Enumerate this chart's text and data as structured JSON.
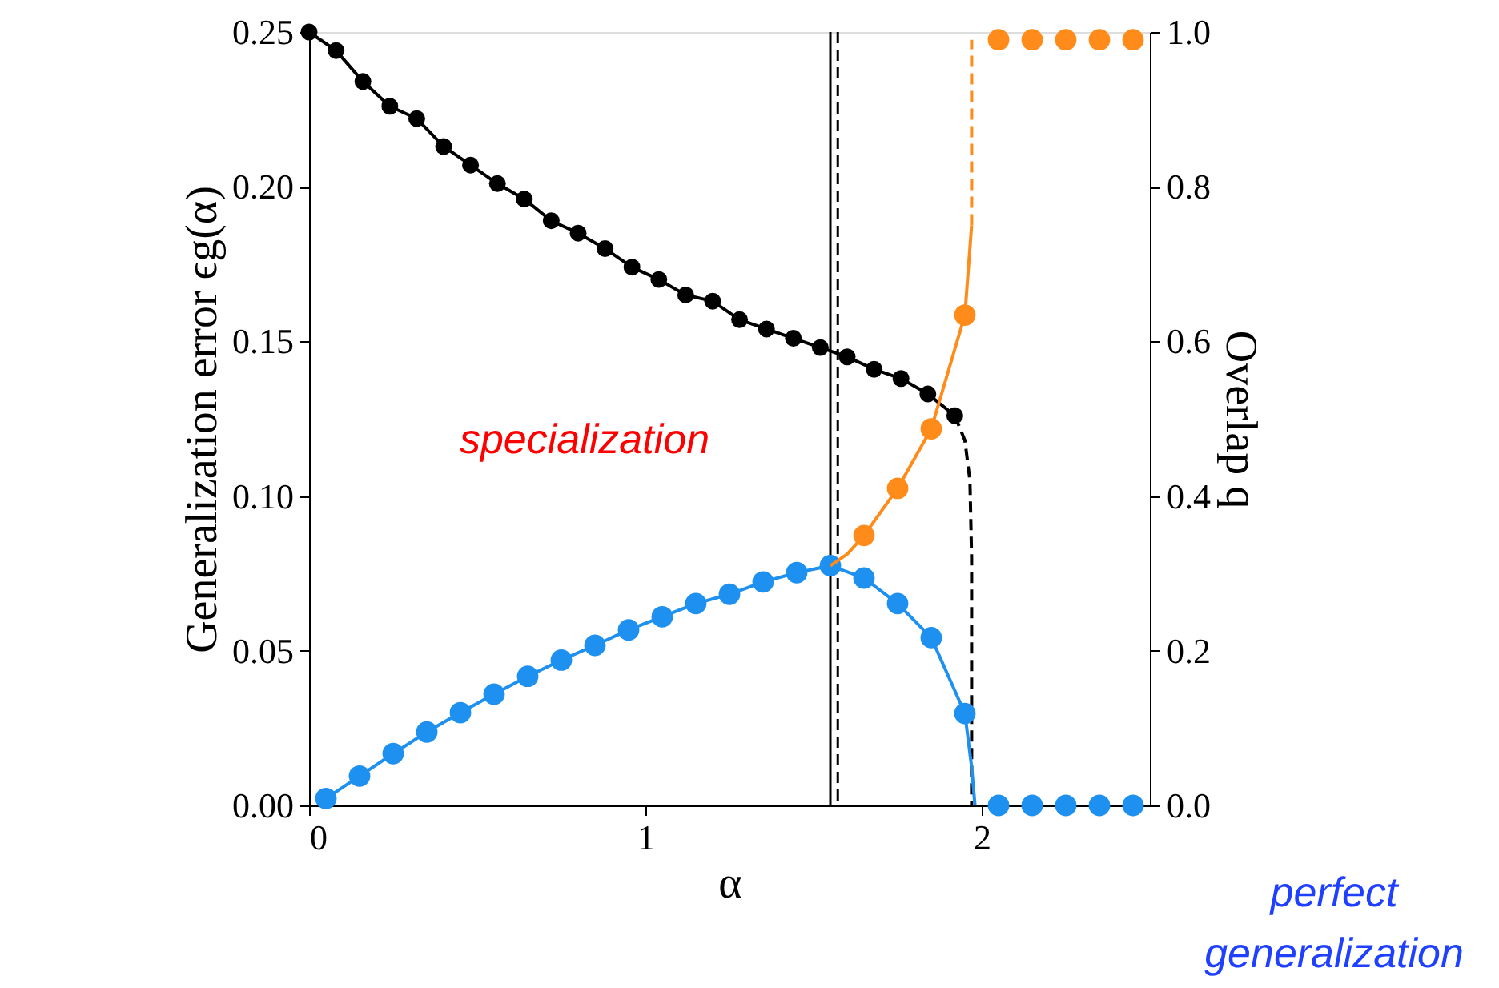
{
  "chart_data": {
    "type": "line",
    "xlabel": "α",
    "ylabel": "Generalization error ϵg(α)",
    "y2label": "Overlap q",
    "xlim": [
      0,
      2.5
    ],
    "xticks": [
      0,
      1,
      2
    ],
    "ylim": [
      0,
      0.25
    ],
    "yticks": [
      {
        "value": 0,
        "label": "0.00"
      },
      {
        "value": 0.05,
        "label": "0.05"
      },
      {
        "value": 0.1,
        "label": "0.10"
      },
      {
        "value": 0.15,
        "label": "0.15"
      },
      {
        "value": 0.2,
        "label": "0.20"
      },
      {
        "value": 0.25,
        "label": "0.25"
      }
    ],
    "y2lim": [
      0,
      1
    ],
    "y2ticks": [
      {
        "value": 0,
        "label": "0.0"
      },
      {
        "value": 0.2,
        "label": "0.2"
      },
      {
        "value": 0.4,
        "label": "0.4"
      },
      {
        "value": 0.6,
        "label": "0.6"
      },
      {
        "value": 0.8,
        "label": "0.8"
      },
      {
        "value": 1,
        "label": "1.0"
      }
    ],
    "grid": false,
    "annotations": [
      "specialization",
      "perfect generalization"
    ],
    "ref_lines": [
      {
        "axis": "x",
        "value": 1.55,
        "label": null,
        "color": "#000000",
        "line_style": "solid"
      },
      {
        "axis": "x",
        "value": 1.572,
        "label": null,
        "color": "#000000",
        "line_style": "dashed"
      }
    ],
    "series": [
      {
        "color": "#000000",
        "marker": "circle",
        "line_style": "solid",
        "x": [
          0,
          0.08,
          0.16,
          0.24,
          0.32,
          0.4,
          0.48,
          0.56,
          0.64,
          0.72,
          0.8,
          0.88,
          0.96,
          1.04,
          1.12,
          1.2,
          1.28,
          1.36,
          1.44,
          1.52,
          1.6,
          1.68,
          1.76,
          1.84,
          1.92
        ],
        "values": [
          0.25,
          0.244,
          0.234,
          0.226,
          0.222,
          0.213,
          0.207,
          0.201,
          0.196,
          0.189,
          0.185,
          0.18,
          0.174,
          0.17,
          0.165,
          0.163,
          0.157,
          0.154,
          0.151,
          0.148,
          0.145,
          0.141,
          0.138,
          0.133,
          0.126
        ]
      },
      {
        "color": "#000000",
        "marker": "none",
        "line_style": "dashed",
        "x": [
          1.92,
          1.95,
          1.965,
          1.97,
          1.97
        ],
        "values": [
          0.126,
          0.118,
          0.105,
          0.08,
          0
        ]
      },
      {
        "color": "#1e90f0",
        "marker": "circle",
        "line_style": "solid",
        "axis": "y2",
        "x": [
          0.05,
          0.15,
          0.25,
          0.35,
          0.45,
          0.55,
          0.65,
          0.75,
          0.85,
          0.95,
          1.05,
          1.15,
          1.25,
          1.35,
          1.45,
          1.55,
          1.65,
          1.75,
          1.85,
          1.95
        ],
        "values": [
          0.009,
          0.038,
          0.067,
          0.095,
          0.12,
          0.144,
          0.167,
          0.188,
          0.207,
          0.227,
          0.244,
          0.261,
          0.273,
          0.289,
          0.301,
          0.31,
          0.294,
          0.261,
          0.217,
          0.119
        ]
      },
      {
        "color": "#1e90f0",
        "marker": "none",
        "line_style": "solid",
        "axis": "y2",
        "x": [
          1.95,
          1.97,
          1.98
        ],
        "values": [
          0.119,
          0.05,
          0
        ]
      },
      {
        "type": "scatter",
        "color": "#1e90f0",
        "marker": "circle",
        "axis": "y2",
        "x": [
          2.05,
          2.15,
          2.25,
          2.35,
          2.45
        ],
        "values": [
          0,
          0,
          0,
          0,
          0
        ]
      },
      {
        "color": "#ff8c1a",
        "marker": "none",
        "line_style": "solid",
        "axis": "y2",
        "x": [
          1.55,
          1.6,
          1.65,
          1.75,
          1.85,
          1.95,
          1.97
        ],
        "values": [
          0.31,
          0.325,
          0.349,
          0.41,
          0.487,
          0.634,
          0.75
        ]
      },
      {
        "type": "scatter",
        "color": "#ff8c1a",
        "marker": "circle",
        "axis": "y2",
        "x": [
          1.65,
          1.75,
          1.85,
          1.95
        ],
        "values": [
          0.349,
          0.41,
          0.487,
          0.634
        ]
      },
      {
        "color": "#ff8c1a",
        "marker": "none",
        "line_style": "dashed",
        "axis": "y2",
        "x": [
          1.97,
          1.97
        ],
        "values": [
          0.75,
          0.99
        ]
      },
      {
        "type": "scatter",
        "color": "#ff8c1a",
        "marker": "circle",
        "axis": "y2",
        "x": [
          2.05,
          2.15,
          2.25,
          2.35,
          2.45
        ],
        "values": [
          0.99,
          0.99,
          0.99,
          0.99,
          0.99
        ]
      }
    ]
  }
}
